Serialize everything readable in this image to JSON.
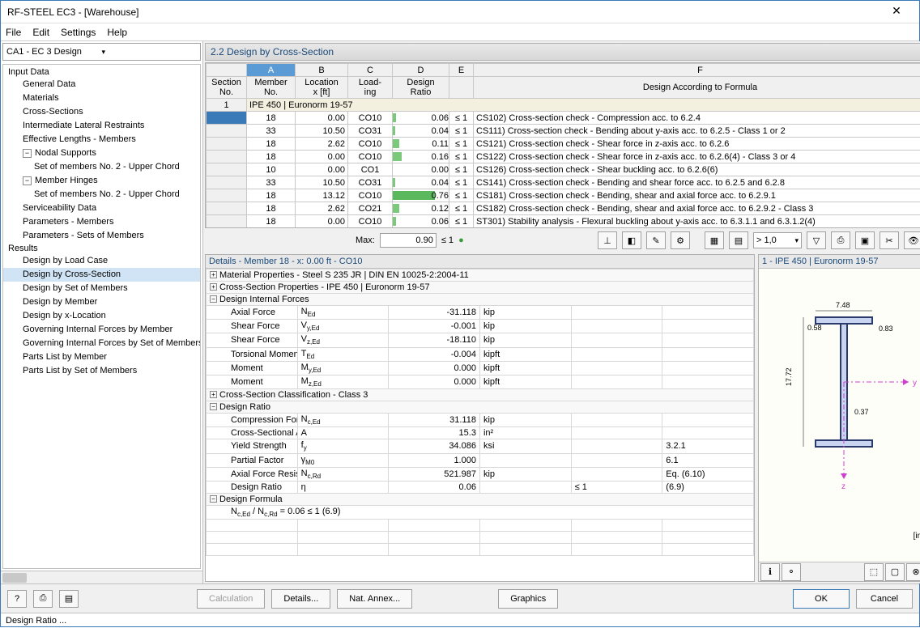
{
  "window": {
    "title": "RF-STEEL EC3 - [Warehouse]",
    "close": "✕"
  },
  "menu": [
    "File",
    "Edit",
    "Settings",
    "Help"
  ],
  "sidebar": {
    "combo": "CA1 - EC 3 Design",
    "sections": [
      {
        "label": "Input Data",
        "items": [
          {
            "label": "General Data"
          },
          {
            "label": "Materials"
          },
          {
            "label": "Cross-Sections"
          },
          {
            "label": "Intermediate Lateral Restraints"
          },
          {
            "label": "Effective Lengths - Members"
          },
          {
            "label": "Nodal Supports",
            "expandable": true,
            "children": [
              "Set of members No. 2 - Upper Chord"
            ]
          },
          {
            "label": "Member Hinges",
            "expandable": true,
            "children": [
              "Set of members No. 2 - Upper Chord"
            ]
          },
          {
            "label": "Serviceability Data"
          },
          {
            "label": "Parameters - Members"
          },
          {
            "label": "Parameters - Sets of Members"
          }
        ]
      },
      {
        "label": "Results",
        "items": [
          {
            "label": "Design by Load Case"
          },
          {
            "label": "Design by Cross-Section",
            "selected": true
          },
          {
            "label": "Design by Set of Members"
          },
          {
            "label": "Design by Member"
          },
          {
            "label": "Design by x-Location"
          },
          {
            "label": "Governing Internal Forces by Member"
          },
          {
            "label": "Governing Internal Forces by Set of Members"
          },
          {
            "label": "Parts List by Member"
          },
          {
            "label": "Parts List by Set of Members"
          }
        ]
      }
    ]
  },
  "content": {
    "title": "2.2 Design by Cross-Section",
    "columns": [
      "Section No.",
      "Member No.",
      "Location x [ft]",
      "Load-ing",
      "Design Ratio",
      "",
      "Design According to Formula"
    ],
    "colLetters": [
      "",
      "A",
      "B",
      "C",
      "D",
      "E",
      "F"
    ],
    "groupRow": "IPE 450 | Euronorm 19-57",
    "rows": [
      {
        "sec": "1",
        "mem": "18",
        "x": "0.00",
        "load": "CO10",
        "ratio": "0.06",
        "bar": 6,
        "cmp": "≤ 1",
        "desc": "CS102) Cross-section check - Compression acc. to 6.2.4",
        "sel": true
      },
      {
        "mem": "33",
        "x": "10.50",
        "load": "CO31",
        "ratio": "0.04",
        "bar": 4,
        "cmp": "≤ 1",
        "desc": "CS111) Cross-section check - Bending about y-axis acc. to 6.2.5 - Class 1 or 2"
      },
      {
        "mem": "18",
        "x": "2.62",
        "load": "CO10",
        "ratio": "0.11",
        "bar": 11,
        "cmp": "≤ 1",
        "desc": "CS121) Cross-section check - Shear force in z-axis acc. to 6.2.6"
      },
      {
        "mem": "18",
        "x": "0.00",
        "load": "CO10",
        "ratio": "0.16",
        "bar": 16,
        "cmp": "≤ 1",
        "desc": "CS122) Cross-section check - Shear force in z-axis acc. to 6.2.6(4) - Class 3 or 4"
      },
      {
        "mem": "10",
        "x": "0.00",
        "load": "CO1",
        "ratio": "0.00",
        "bar": 0,
        "cmp": "≤ 1",
        "desc": "CS126) Cross-section check - Shear buckling acc. to 6.2.6(6)"
      },
      {
        "mem": "33",
        "x": "10.50",
        "load": "CO31",
        "ratio": "0.04",
        "bar": 4,
        "cmp": "≤ 1",
        "desc": "CS141) Cross-section check - Bending and shear force acc. to 6.2.5 and 6.2.8"
      },
      {
        "mem": "18",
        "x": "13.12",
        "load": "CO10",
        "ratio": "0.76",
        "bar": 76,
        "cmp": "≤ 1",
        "desc": "CS181) Cross-section check - Bending, shear and axial force acc. to 6.2.9.1"
      },
      {
        "mem": "18",
        "x": "2.62",
        "load": "CO21",
        "ratio": "0.12",
        "bar": 12,
        "cmp": "≤ 1",
        "desc": "CS182) Cross-section check - Bending, shear and axial force acc. to 6.2.9.2 - Class 3"
      },
      {
        "mem": "18",
        "x": "0.00",
        "load": "CO10",
        "ratio": "0.06",
        "bar": 6,
        "cmp": "≤ 1",
        "desc": "ST301) Stability analysis - Flexural buckling about y-axis acc. to 6.3.1.1 and 6.3.1.2(4)"
      }
    ],
    "max": {
      "label": "Max:",
      "value": "0.90",
      "cmp": "≤ 1"
    },
    "scaleCombo": "> 1,0"
  },
  "details": {
    "header": "Details - Member 18 - x: 0.00 ft - CO10",
    "groups": [
      {
        "label": "Material Properties - Steel S 235 JR | DIN EN 10025-2:2004-11",
        "collapsed": true
      },
      {
        "label": "Cross-Section Properties  - IPE 450 | Euronorm 19-57",
        "collapsed": true
      },
      {
        "label": "Design Internal Forces",
        "collapsed": false,
        "rows": [
          {
            "name": "Axial Force",
            "sym": "N<sub>Ed</sub>",
            "val": "-31.118",
            "unit": "kip"
          },
          {
            "name": "Shear Force",
            "sym": "V<sub>y,Ed</sub>",
            "val": "-0.001",
            "unit": "kip"
          },
          {
            "name": "Shear Force",
            "sym": "V<sub>z,Ed</sub>",
            "val": "-18.110",
            "unit": "kip"
          },
          {
            "name": "Torsional Moment",
            "sym": "T<sub>Ed</sub>",
            "val": "-0.004",
            "unit": "kipft"
          },
          {
            "name": "Moment",
            "sym": "M<sub>y,Ed</sub>",
            "val": "0.000",
            "unit": "kipft"
          },
          {
            "name": "Moment",
            "sym": "M<sub>z,Ed</sub>",
            "val": "0.000",
            "unit": "kipft"
          }
        ]
      },
      {
        "label": "Cross-Section Classification - Class 3",
        "collapsed": true
      },
      {
        "label": "Design Ratio",
        "collapsed": false,
        "rows": [
          {
            "name": "Compression Force",
            "sym": "N<sub>c,Ed</sub>",
            "val": "31.118",
            "unit": "kip"
          },
          {
            "name": "Cross-Sectional Area",
            "sym": "A",
            "val": "15.3",
            "unit": "in²"
          },
          {
            "name": "Yield Strength",
            "sym": "f<sub>y</sub>",
            "val": "34.086",
            "unit": "ksi",
            "ref": "3.2.1"
          },
          {
            "name": "Partial Factor",
            "sym": "γ<sub>M0</sub>",
            "val": "1.000",
            "unit": "",
            "ref": "6.1"
          },
          {
            "name": "Axial Force Resistance",
            "sym": "N<sub>c,Rd</sub>",
            "val": "521.987",
            "unit": "kip",
            "ref": "Eq. (6.10)"
          },
          {
            "name": "Design Ratio",
            "sym": "η",
            "val": "0.06",
            "unit": "",
            "cmp": "≤ 1",
            "ref": "(6.9)"
          }
        ]
      },
      {
        "label": "Design Formula",
        "collapsed": false,
        "rows2": [
          "N<sub>c,Ed</sub> / N<sub>c,Rd</sub> = 0.06 ≤ 1   (6.9)"
        ]
      }
    ]
  },
  "preview": {
    "title": "1 - IPE 450 | Euronorm 19-57",
    "dims": {
      "width": "7.48",
      "height": "17.72",
      "tf": "0.58",
      "tw": "0.37",
      "flange_w": "0.83"
    },
    "unit": "[in]",
    "axes": {
      "y": "y",
      "z": "z"
    }
  },
  "footer": {
    "calc": "Calculation",
    "details": "Details...",
    "annex": "Nat. Annex...",
    "graphics": "Graphics",
    "ok": "OK",
    "cancel": "Cancel"
  },
  "status": "Design Ratio ..."
}
